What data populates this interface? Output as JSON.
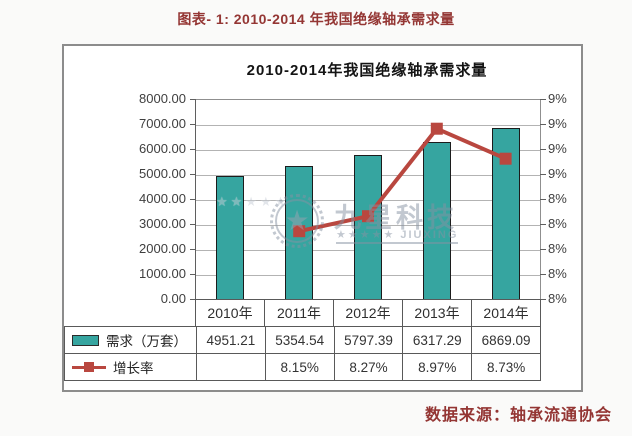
{
  "page": {
    "caption": "图表- 1: 2010-2014 年我国绝缘轴承需求量",
    "source": "数据来源：轴承流通协会"
  },
  "chart": {
    "title": "2010-2014年我国绝缘轴承需求量",
    "colors": {
      "bar_fill": "#36a5a0",
      "bar_border": "#1c1c1c",
      "line": "#b9473f",
      "grid": "#b3b3b3",
      "caption_accent": "#943634"
    },
    "watermark": {
      "stars_left": "★★★★★",
      "emblem_star": "★",
      "brand": "九星科技",
      "sub_stars": "★★★★★",
      "sub_text": "JIUXING"
    }
  },
  "chart_data": {
    "type": "bar",
    "combo": "bar+line",
    "title": "2010-2014年我国绝缘轴承需求量",
    "categories": [
      "2010年",
      "2011年",
      "2012年",
      "2013年",
      "2014年"
    ],
    "series": [
      {
        "name": "需求（万套）",
        "type": "bar",
        "axis": "left",
        "values": [
          4951.21,
          5354.54,
          5797.39,
          6317.29,
          6869.09
        ]
      },
      {
        "name": "增长率",
        "type": "line",
        "axis": "right",
        "unit": "%",
        "values": [
          null,
          8.15,
          8.27,
          8.97,
          8.73
        ]
      }
    ],
    "left_axis": {
      "min": 0,
      "max": 8000,
      "step": 1000,
      "decimals": 2
    },
    "right_axis": {
      "min": 7.6,
      "max": 9.2,
      "step": 0.2,
      "tick_labels_top_to_bottom": [
        "9%",
        "9%",
        "9%",
        "9%",
        "8%",
        "8%",
        "8%",
        "8%",
        "8%"
      ]
    },
    "grid": true,
    "legend_position": "table-left"
  },
  "table": {
    "rows": [
      {
        "label": "需求（万套）",
        "values": [
          "4951.21",
          "5354.54",
          "5797.39",
          "6317.29",
          "6869.09"
        ]
      },
      {
        "label": "增长率",
        "values": [
          "",
          "8.15%",
          "8.27%",
          "8.97%",
          "8.73%"
        ]
      }
    ]
  }
}
